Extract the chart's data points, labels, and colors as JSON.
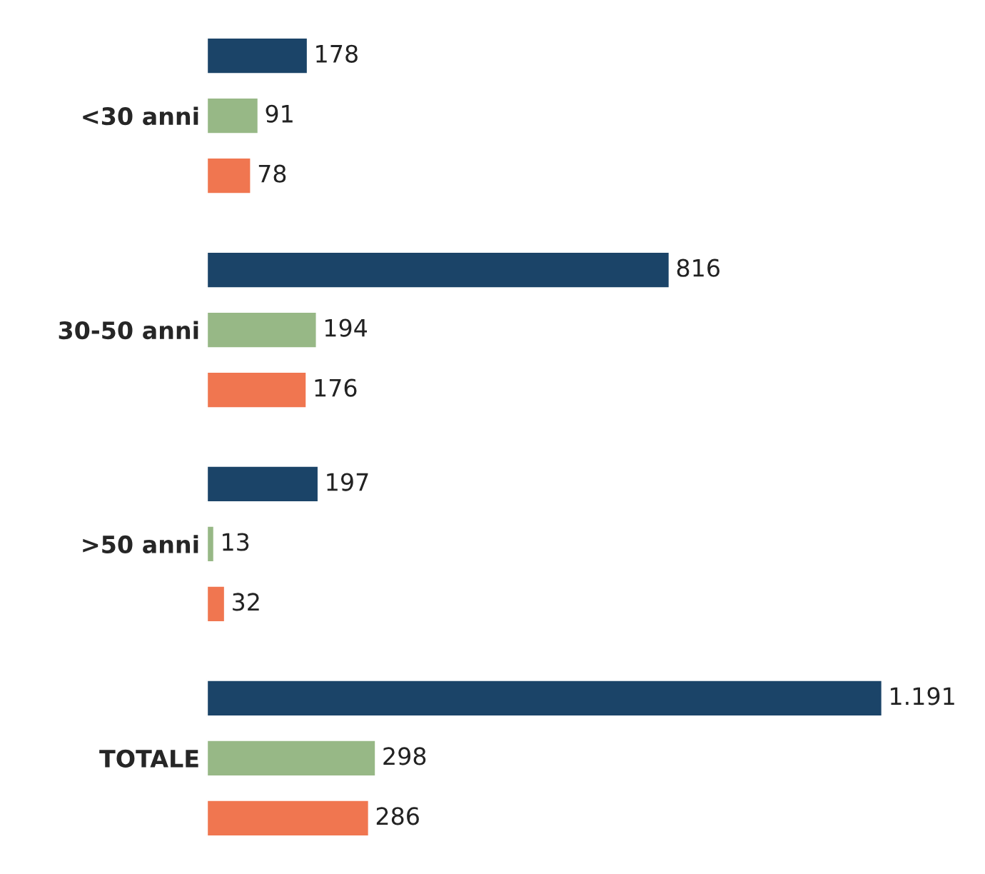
{
  "chart_data": {
    "type": "bar",
    "orientation": "horizontal",
    "categories": [
      "<30 anni",
      "30-50 anni",
      ">50 anni",
      "TOTALE"
    ],
    "series": [
      {
        "color": "#1b4468",
        "values": [
          178,
          816,
          197,
          1191
        ],
        "value_labels": [
          "178",
          "816",
          "197",
          "1.191"
        ]
      },
      {
        "color": "#97b886",
        "values": [
          91,
          194,
          13,
          298
        ],
        "value_labels": [
          "91",
          "194",
          "13",
          "298"
        ]
      },
      {
        "color": "#f07650",
        "values": [
          78,
          176,
          32,
          286
        ],
        "value_labels": [
          "78",
          "176",
          "32",
          "286"
        ]
      }
    ],
    "tick_labels": "y",
    "grid": false,
    "legend": false
  }
}
